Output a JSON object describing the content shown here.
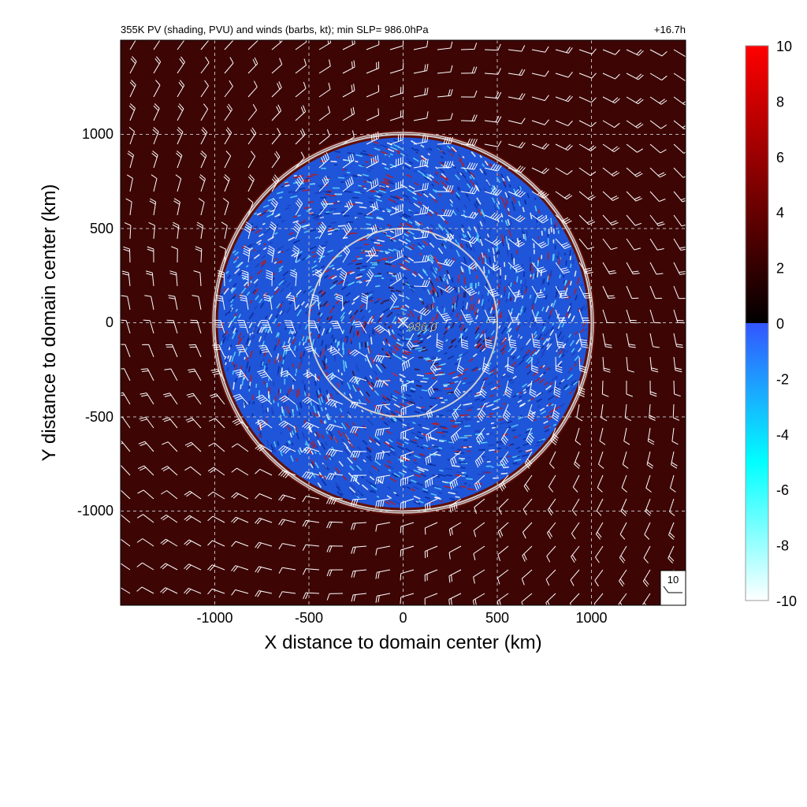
{
  "chart_data": {
    "type": "heatmap",
    "title_left": "355K PV (shading, PVU) and winds (barbs, kt); min SLP=  986.0hPa",
    "title_right": "+16.7h",
    "xlabel": "X distance to domain center (km)",
    "ylabel": "Y distance to domain center (km)",
    "xlim": [
      -1500,
      1500
    ],
    "ylim": [
      -1500,
      1500
    ],
    "xticks": [
      -1000,
      -500,
      0,
      500,
      1000
    ],
    "yticks": [
      -1000,
      -500,
      0,
      500,
      1000
    ],
    "xtick_labels": [
      "-1000",
      "-500",
      "0",
      "500",
      "1000"
    ],
    "ytick_labels": [
      "-1000",
      "-500",
      "0",
      "500",
      "1000"
    ],
    "grid": true,
    "colorbar": {
      "range": [
        -10,
        10
      ],
      "ticks": [
        10,
        8,
        6,
        4,
        2,
        0,
        -2,
        -4,
        -6,
        -8,
        -10
      ],
      "tick_labels": [
        "10",
        "8",
        "6",
        "4",
        "2",
        "0",
        "-2",
        "-4",
        "-6",
        "-8",
        "-10"
      ],
      "negative_colors": [
        "#ffffff",
        "#00ffff",
        "#3355ff"
      ],
      "positive_colors": [
        "#000000",
        "#800000",
        "#ff0000"
      ]
    },
    "range_rings_km": [
      500,
      1000
    ],
    "min_slp_marker": {
      "x": 0,
      "y": 0,
      "label": "986.0"
    },
    "barb_reference": {
      "label": "10",
      "speed_kt": 10
    },
    "field_description": {
      "outer_pv_pvu": 2.5,
      "inner_disk_radius_km": 980,
      "inner_pv_range": [
        -10,
        10
      ]
    }
  }
}
